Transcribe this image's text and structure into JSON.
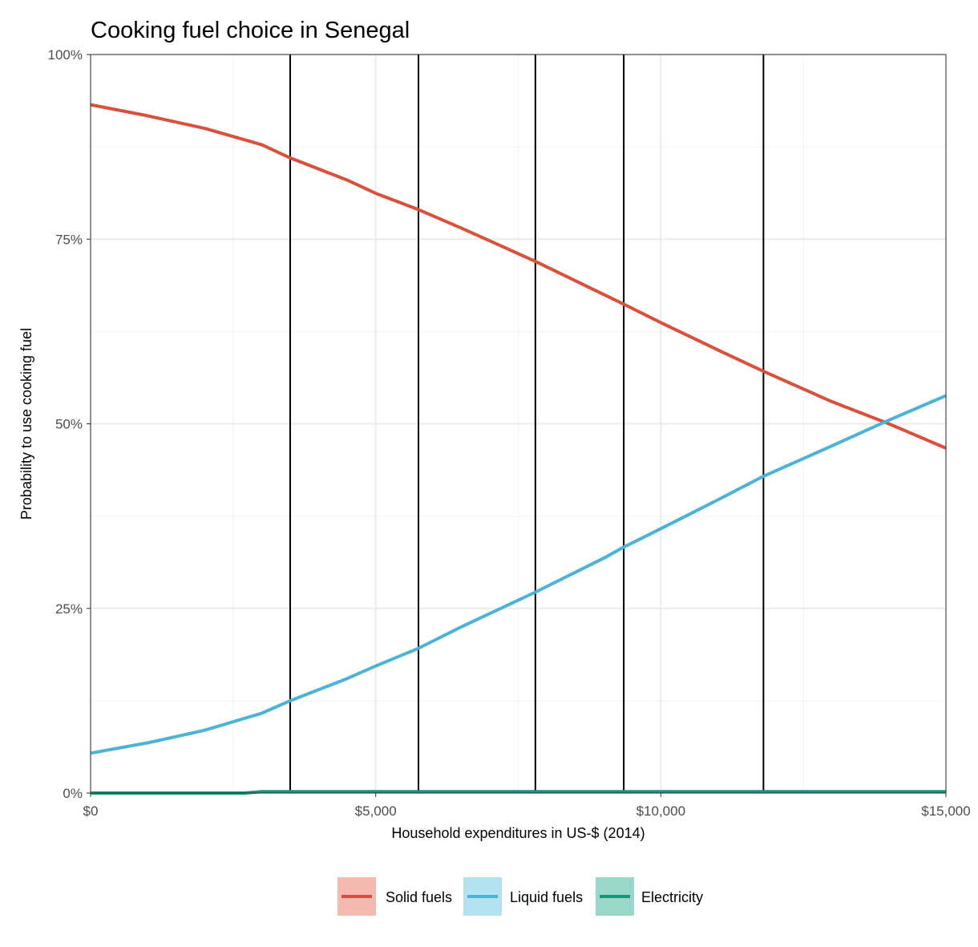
{
  "chart_data": {
    "type": "line",
    "title": "Cooking fuel choice in Senegal",
    "xlabel": "Household expenditures in US-$ (2014)",
    "ylabel": "Probability to use cooking fuel",
    "xlim": [
      0,
      15000
    ],
    "ylim": [
      0,
      1
    ],
    "x_ticks": [
      {
        "value": 0,
        "label": "$0"
      },
      {
        "value": 5000,
        "label": "$5,000"
      },
      {
        "value": 10000,
        "label": "$10,000"
      },
      {
        "value": 15000,
        "label": "$15,000"
      }
    ],
    "y_ticks": [
      {
        "value": 0,
        "label": "0%"
      },
      {
        "value": 0.25,
        "label": "25%"
      },
      {
        "value": 0.5,
        "label": "50%"
      },
      {
        "value": 0.75,
        "label": "75%"
      },
      {
        "value": 1,
        "label": "100%"
      }
    ],
    "grid": true,
    "legend_position": "bottom",
    "reference_lines_x": [
      3500,
      5750,
      7800,
      9350,
      11800
    ],
    "series": [
      {
        "name": "Solid fuels",
        "color": "#d9513c",
        "legend_fill": "#f4b9af",
        "x": [
          0,
          1000,
          2000,
          3000,
          3500,
          4500,
          5000,
          5750,
          6500,
          7800,
          9000,
          9350,
          10000,
          11000,
          11800,
          13000,
          14000,
          15000
        ],
        "y": [
          0.932,
          0.917,
          0.9,
          0.878,
          0.86,
          0.83,
          0.812,
          0.79,
          0.765,
          0.72,
          0.675,
          0.662,
          0.637,
          0.6,
          0.571,
          0.53,
          0.5,
          0.467
        ]
      },
      {
        "name": "Liquid fuels",
        "color": "#4db3d4",
        "legend_fill": "#b3e3f0",
        "x": [
          0,
          1000,
          2000,
          3000,
          3500,
          4500,
          5000,
          5750,
          6500,
          7800,
          9000,
          9350,
          10000,
          11000,
          11800,
          13000,
          14000,
          15000
        ],
        "y": [
          0.054,
          0.068,
          0.085,
          0.108,
          0.125,
          0.155,
          0.172,
          0.196,
          0.225,
          0.272,
          0.318,
          0.333,
          0.358,
          0.397,
          0.429,
          0.47,
          0.505,
          0.538
        ]
      },
      {
        "name": "Electricity",
        "color": "#13977a",
        "legend_fill": "#99d8c9",
        "x": [
          0,
          2700,
          3000,
          15000
        ],
        "y": [
          0.0,
          0.0,
          0.002,
          0.002
        ]
      }
    ]
  }
}
